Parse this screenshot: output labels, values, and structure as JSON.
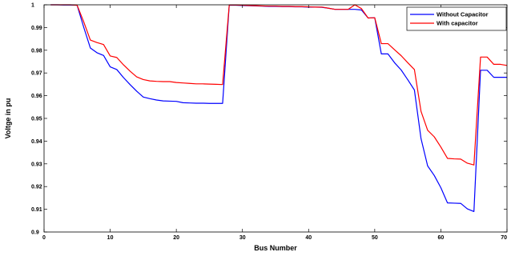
{
  "chart_data": {
    "type": "line",
    "title": "",
    "xlabel": "Bus Number",
    "ylabel": "Voltge in pu",
    "xlim": [
      0,
      70
    ],
    "ylim": [
      0.9,
      1
    ],
    "xticks": [
      0,
      10,
      20,
      30,
      40,
      50,
      60,
      70
    ],
    "xtick_labels": [
      "0",
      "10",
      "20",
      "30",
      "40",
      "50",
      "60",
      "70"
    ],
    "yticks": [
      0.9,
      0.91,
      0.92,
      0.93,
      0.94,
      0.95,
      0.96,
      0.97,
      0.98,
      0.99,
      1
    ],
    "ytick_labels": [
      "0.9",
      "0.91",
      "0.92",
      "0.93",
      "0.94",
      "0.95",
      "0.96",
      "0.97",
      "0.98",
      "0.99",
      "1"
    ],
    "grid": false,
    "legend_position": "top-right",
    "series": [
      {
        "name": "Without Capacitor",
        "color": "#0000ff",
        "x": [
          1,
          2,
          3,
          4,
          5,
          6,
          7,
          8,
          9,
          10,
          11,
          12,
          13,
          14,
          15,
          16,
          17,
          18,
          19,
          20,
          21,
          22,
          23,
          24,
          25,
          26,
          27,
          28,
          29,
          30,
          31,
          32,
          33,
          34,
          35,
          36,
          37,
          38,
          39,
          40,
          41,
          42,
          43,
          44,
          45,
          46,
          47,
          48,
          49,
          50,
          51,
          52,
          53,
          54,
          55,
          56,
          57,
          58,
          59,
          60,
          61,
          62,
          63,
          64,
          65,
          66,
          67,
          68,
          69,
          70
        ],
        "values": [
          1.0,
          1.0,
          0.9999,
          0.9999,
          0.9998,
          0.9901,
          0.981,
          0.9789,
          0.9777,
          0.9727,
          0.9715,
          0.968,
          0.9649,
          0.962,
          0.9594,
          0.9587,
          0.9581,
          0.9577,
          0.9576,
          0.9575,
          0.9569,
          0.9568,
          0.9567,
          0.9567,
          0.9566,
          0.9566,
          0.9566,
          0.9998,
          0.9998,
          0.9997,
          0.9996,
          0.9995,
          0.9994,
          0.9993,
          0.9993,
          0.9992,
          0.9992,
          0.9991,
          0.9991,
          0.999,
          0.999,
          0.9989,
          0.9985,
          0.998,
          0.998,
          0.998,
          0.998,
          0.9977,
          0.9942,
          0.9943,
          0.9784,
          0.9784,
          0.9745,
          0.9713,
          0.967,
          0.9625,
          0.9411,
          0.9291,
          0.9249,
          0.9195,
          0.9128,
          0.9127,
          0.9126,
          0.9102,
          0.909,
          0.9712,
          0.9712,
          0.9681,
          0.9681,
          0.9681
        ]
      },
      {
        "name": "With capacitor",
        "color": "#ff0000",
        "x": [
          1,
          2,
          3,
          4,
          5,
          6,
          7,
          8,
          9,
          10,
          11,
          12,
          13,
          14,
          15,
          16,
          17,
          18,
          19,
          20,
          21,
          22,
          23,
          24,
          25,
          26,
          27,
          28,
          29,
          30,
          31,
          32,
          33,
          34,
          35,
          36,
          37,
          38,
          39,
          40,
          41,
          42,
          43,
          44,
          45,
          46,
          47,
          48,
          49,
          50,
          51,
          52,
          53,
          54,
          55,
          56,
          57,
          58,
          59,
          60,
          61,
          62,
          63,
          64,
          65,
          66,
          67,
          68,
          69,
          70
        ],
        "values": [
          1.0,
          1.0,
          1.0,
          1.0,
          0.9998,
          0.9925,
          0.9845,
          0.9834,
          0.9825,
          0.9775,
          0.9768,
          0.9736,
          0.9708,
          0.9683,
          0.9671,
          0.9665,
          0.9663,
          0.9662,
          0.9662,
          0.9658,
          0.9656,
          0.9654,
          0.9652,
          0.9652,
          0.9651,
          0.965,
          0.9649,
          0.9999,
          0.9999,
          0.9998,
          0.9997,
          0.9996,
          0.9995,
          0.9994,
          0.9994,
          0.9993,
          0.9993,
          0.9992,
          0.9992,
          0.9991,
          0.999,
          0.999,
          0.9985,
          0.998,
          0.998,
          0.998,
          1.0,
          0.9983,
          0.9942,
          0.9943,
          0.9829,
          0.9829,
          0.9802,
          0.9776,
          0.9745,
          0.9715,
          0.9531,
          0.9448,
          0.9419,
          0.9374,
          0.9324,
          0.9322,
          0.9321,
          0.9303,
          0.9295,
          0.977,
          0.977,
          0.9738,
          0.9738,
          0.9733
        ]
      }
    ]
  }
}
